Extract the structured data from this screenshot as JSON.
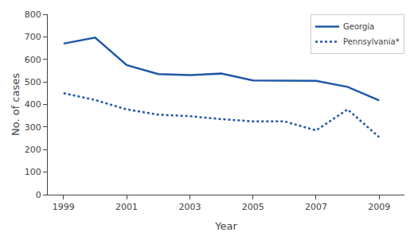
{
  "chart_data": {
    "type": "line",
    "x": [
      1999,
      2000,
      2001,
      2002,
      2003,
      2004,
      2005,
      2006,
      2007,
      2008,
      2009
    ],
    "series": [
      {
        "name": "Georgia",
        "color": "#2058A8",
        "line_style": "solid",
        "values": [
          670,
          697,
          575,
          535,
          530,
          537,
          507,
          505,
          505,
          478,
          418
        ]
      },
      {
        "name": "Pennsylvania*",
        "color": "#2058A8",
        "line_style": "dotted",
        "values": [
          450,
          420,
          378,
          355,
          348,
          335,
          325,
          325,
          285,
          378,
          255
        ]
      }
    ],
    "xlabel": "Year",
    "ylabel": "No. of cases",
    "xlim": [
      1998.5,
      2009.8
    ],
    "xticks": [
      1999,
      2001,
      2003,
      2005,
      2007,
      2009
    ],
    "ylim": [
      0,
      800
    ],
    "yticks": [
      0,
      100,
      200,
      300,
      400,
      500,
      600,
      700,
      800
    ],
    "grid": false,
    "legend": "upper right"
  }
}
